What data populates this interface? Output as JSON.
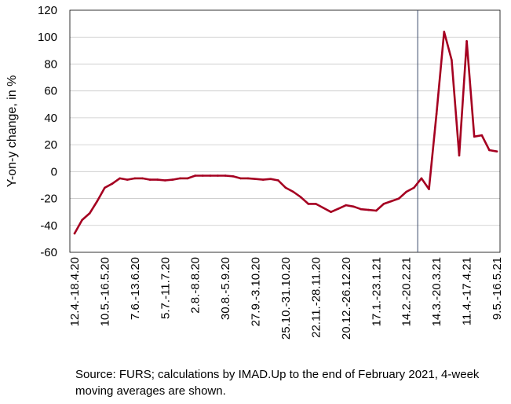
{
  "chart_data": {
    "type": "line",
    "ylabel": "Y-on-y change, in %",
    "ylim": [
      -60,
      120
    ],
    "yticks": [
      -60,
      -40,
      -20,
      0,
      20,
      40,
      60,
      80,
      100,
      120
    ],
    "grid": true,
    "x_tick_labels": [
      "12.4.-18.4.20",
      "10.5.-16.5.20",
      "7.6.-13.6.20",
      "5.7.-11.7.20",
      "2.8.-8.8.20",
      "30.8.-5.9.20",
      "27.9.-3.10.20",
      "25.10.-31.10.20",
      "22.11.-28.11.20",
      "20.12.-26.12.20",
      "17.1.-23.1.21",
      "14.2.-20.2.21",
      "14.3.-20.3.21",
      "11.4.-17.4.21",
      "9.5.-16.5.21"
    ],
    "weeks": [
      "12.4.-18.4.20",
      "19.4.-25.4.20",
      "26.4.-2.5.20",
      "3.5.-9.5.20",
      "10.5.-16.5.20",
      "17.5.-23.5.20",
      "24.5.-30.5.20",
      "31.5.-6.6.20",
      "7.6.-13.6.20",
      "14.6.-20.6.20",
      "21.6.-27.6.20",
      "28.6.-4.7.20",
      "5.7.-11.7.20",
      "12.7.-18.7.20",
      "19.7.-25.7.20",
      "26.7.-1.8.20",
      "2.8.-8.8.20",
      "9.8.-15.8.20",
      "16.8.-22.8.20",
      "23.8.-29.8.20",
      "30.8.-5.9.20",
      "6.9.-12.9.20",
      "13.9.-19.9.20",
      "20.9.-26.9.20",
      "27.9.-3.10.20",
      "4.10.-10.10.20",
      "11.10.-17.10.20",
      "18.10.-24.10.20",
      "25.10.-31.10.20",
      "1.11.-7.11.20",
      "8.11.-14.11.20",
      "15.11.-21.11.20",
      "22.11.-28.11.20",
      "29.11.-5.12.20",
      "6.12.-12.12.20",
      "13.12.-19.12.20",
      "20.12.-26.12.20",
      "27.12.-2.1.21",
      "3.1.-9.1.21",
      "10.1.-16.1.21",
      "17.1.-23.1.21",
      "24.1.-30.1.21",
      "31.1.-6.2.21",
      "7.2.-13.2.21",
      "14.2.-20.2.21",
      "21.2.-27.2.21",
      "28.2.-6.3.21",
      "7.3.-13.3.21",
      "14.3.-20.3.21",
      "21.3.-27.3.21",
      "28.3.-3.4.21",
      "4.4.-10.4.21",
      "11.4.-17.4.21",
      "18.4.-24.4.21",
      "25.4.-1.5.21",
      "2.5.-8.5.21",
      "9.5.-16.5.21"
    ],
    "series": [
      {
        "color": "#a50021",
        "values": [
          -46,
          -36,
          -31,
          -22,
          -12,
          -9,
          -5,
          -6,
          -5,
          -5,
          -6,
          -6,
          -6.5,
          -6,
          -5,
          -5,
          -3,
          -3,
          -3,
          -3,
          -3,
          -3.5,
          -5,
          -5,
          -5.5,
          -6,
          -5.5,
          -6.5,
          -12,
          -15,
          -19,
          -24,
          -24,
          -27,
          -30,
          -27.5,
          -25,
          -26,
          -28,
          -28.5,
          -29,
          -24,
          -22,
          -20,
          -15,
          -12,
          -5,
          -13,
          43,
          104,
          83,
          12,
          97,
          26,
          27,
          16,
          15
        ]
      }
    ],
    "vline_after_week": "28.2.-6.3.21"
  },
  "source_note": "Source: FURS; calculations by IMAD.Up to the end of February 2021, 4-week moving averages are shown."
}
